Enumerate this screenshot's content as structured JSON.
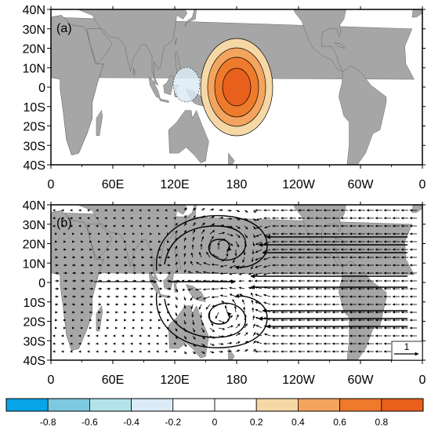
{
  "panels": [
    {
      "label": "(a)",
      "lat_labels": [
        "40N",
        "30N",
        "20N",
        "10N",
        "0",
        "10S",
        "20S",
        "30S",
        "40S"
      ],
      "lon_labels": [
        "0",
        "60E",
        "120E",
        "180",
        "120W",
        "60W",
        "0"
      ],
      "content": "heating anomaly shading"
    },
    {
      "label": "(b)",
      "lat_labels": [
        "40N",
        "30N",
        "20N",
        "10N",
        "0",
        "10S",
        "20S",
        "30S",
        "40S"
      ],
      "lon_labels": [
        "0",
        "60E",
        "120E",
        "180",
        "120W",
        "60W",
        "0"
      ],
      "content": "wind vectors",
      "reference_vector_label": "1"
    }
  ],
  "colorbar": {
    "tick_labels": [
      "-0.8",
      "-0.6",
      "-0.4",
      "-0.2",
      "0",
      "0.2",
      "0.4",
      "0.6",
      "0.8"
    ],
    "colors": [
      "#0aa5e8",
      "#7cc9e0",
      "#b2e3ea",
      "#dcebf6",
      "#ffffff",
      "#ffffff",
      "#f6d8a6",
      "#f3a45e",
      "#ee7a2b",
      "#e8601c"
    ]
  },
  "map_colors": {
    "land": "#a6a6a6",
    "ocean": "#ffffff"
  }
}
